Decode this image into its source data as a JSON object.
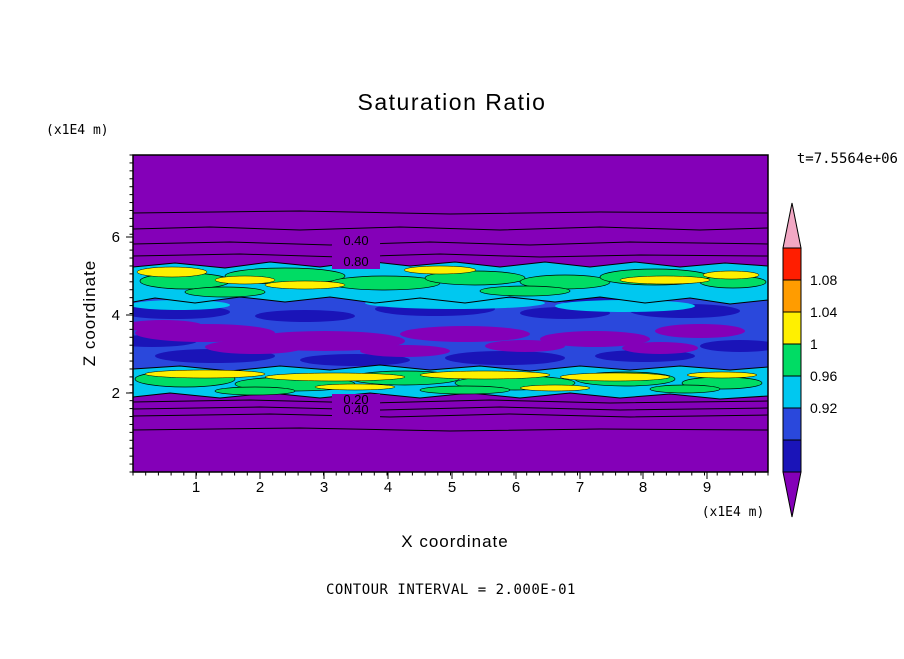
{
  "figure": {
    "title": "Saturation Ratio",
    "time_label": "t=7.5564e+06",
    "footer": "CONTOUR INTERVAL = 2.000E-01",
    "x_axis": {
      "label": "X coordinate",
      "units": "(x1E4 m)",
      "ticks": [
        "1",
        "2",
        "3",
        "4",
        "5",
        "6",
        "7",
        "8",
        "9"
      ]
    },
    "z_axis": {
      "label": "Z coordinate",
      "units": "(x1E4 m)",
      "ticks": [
        "6",
        "4",
        "2"
      ]
    },
    "contour_labels": {
      "upper_1": "0.40",
      "upper_2": "0.80",
      "lower_1": "0.20",
      "lower_2": "0.40"
    },
    "colorbar": {
      "labels": [
        "1.08",
        "1.04",
        "1",
        "0.96",
        "0.92"
      ]
    },
    "palette": {
      "purple": "#8400B8",
      "navy": "#1A14B8",
      "blue": "#2A48DC",
      "cyan": "#00C8F0",
      "green": "#00DC64",
      "yellow": "#FFF000",
      "orange": "#FF9C00",
      "red": "#FF1E00",
      "pink": "#F2A8C4"
    }
  },
  "chart_data": {
    "type": "heatmap",
    "title": "Saturation Ratio",
    "xlabel": "X coordinate",
    "ylabel": "Z coordinate",
    "axis_units": "x1E4 m",
    "xlim": [
      0,
      10
    ],
    "ylim": [
      0,
      8
    ],
    "x_ticks": [
      1,
      2,
      3,
      4,
      5,
      6,
      7,
      8,
      9
    ],
    "y_ticks": [
      2,
      4,
      6
    ],
    "time": "t=7.5564e+06",
    "contour_interval": 0.2,
    "colorbar_tick_values": [
      1.08,
      1.04,
      1.0,
      0.96,
      0.92
    ],
    "colorbar_colors_top_to_bottom": [
      "pink-arrow",
      "red",
      "orange",
      "yellow",
      "green",
      "cyan",
      "blue",
      "navy",
      "purple-arrow"
    ],
    "labeled_line_contours": [
      {
        "value": 0.4,
        "z_approx": 6.0,
        "label": "0.40"
      },
      {
        "value": 0.8,
        "z_approx": 5.6,
        "label": "0.80"
      },
      {
        "value": 0.2,
        "z_approx": 1.55,
        "label": "0.20"
      },
      {
        "value": 0.4,
        "z_approx": 1.3,
        "label": "0.40"
      }
    ],
    "regions": [
      {
        "z_range": [
          5.8,
          8.1
        ],
        "saturation_ratio": "< 0.2",
        "appearance": "uniform purple; stacked line contours 0.2-0.8 near its base"
      },
      {
        "z_range": [
          4.3,
          5.8
        ],
        "saturation_ratio": "0.96 - 1.08",
        "appearance": "noisy cyan band with green and yellow lenses"
      },
      {
        "z_range": [
          2.1,
          4.3
        ],
        "saturation_ratio": "0.88 - 0.96",
        "appearance": "blue / dark-blue field with elongated purple lenses"
      },
      {
        "z_range": [
          1.6,
          2.1
        ],
        "saturation_ratio": "0.96 - 1.08",
        "appearance": "noisy cyan band with green and yellow lenses"
      },
      {
        "z_range": [
          0,
          1.6
        ],
        "saturation_ratio": "< 0.2",
        "appearance": "uniform purple; stacked line contours 0.2-0.8 near its top"
      }
    ]
  }
}
